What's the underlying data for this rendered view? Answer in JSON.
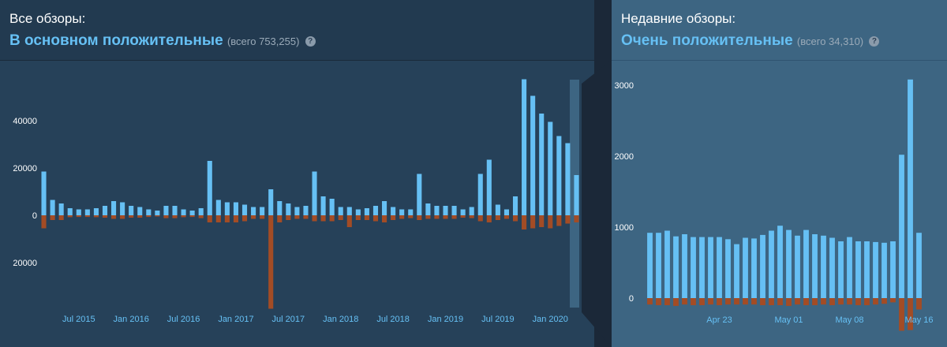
{
  "all_reviews": {
    "title": "Все обзоры:",
    "summary": "В основном положительные",
    "total": "(всего 753,255)",
    "help": "?"
  },
  "recent_reviews": {
    "title": "Недавние обзоры:",
    "summary": "Очень положительные",
    "total": "(всего 34,310)",
    "help": "?"
  },
  "colors": {
    "positive": "#66c0f4",
    "negative": "#a34c25",
    "selection": "#3d6582"
  },
  "chart_data": [
    {
      "type": "bar",
      "name": "all-reviews-monthly",
      "ylim": [
        -40000,
        60000
      ],
      "yticks": [
        40000,
        20000,
        0,
        -20000
      ],
      "ytick_labels": [
        "40000",
        "20000",
        "0",
        "20000"
      ],
      "xtick_labels": [
        "Jul 2015",
        "Jan 2016",
        "Jul 2016",
        "Jan 2017",
        "Jul 2017",
        "Jan 2018",
        "Jul 2018",
        "Jan 2019",
        "Jul 2019",
        "Jan 2020"
      ],
      "xtick_indices": [
        4,
        10,
        16,
        22,
        28,
        34,
        40,
        46,
        52,
        58
      ],
      "positive": [
        18500,
        6500,
        5000,
        3000,
        2500,
        2500,
        3000,
        4000,
        6000,
        5500,
        4000,
        3500,
        2500,
        2000,
        4000,
        4000,
        2500,
        2000,
        3000,
        23000,
        6500,
        5500,
        5500,
        4500,
        3500,
        3500,
        11000,
        6000,
        5000,
        3500,
        4000,
        18500,
        8000,
        7000,
        3500,
        3500,
        2500,
        3000,
        4000,
        6000,
        3500,
        2500,
        2500,
        17500,
        5000,
        4000,
        4000,
        4000,
        2500,
        3500,
        17500,
        23500,
        4500,
        2500,
        8000,
        57500,
        50500,
        43000,
        39500,
        33500,
        30500,
        17000
      ],
      "negative": [
        -5500,
        -2000,
        -2000,
        -800,
        -700,
        -700,
        -800,
        -1000,
        -1500,
        -1500,
        -1000,
        -1000,
        -700,
        -500,
        -1200,
        -1200,
        -800,
        -700,
        -1200,
        -3000,
        -3000,
        -3000,
        -3000,
        -2500,
        -1500,
        -1500,
        -39500,
        -3000,
        -2000,
        -1500,
        -1500,
        -2500,
        -2500,
        -2500,
        -2000,
        -5000,
        -2000,
        -2000,
        -2500,
        -3000,
        -2000,
        -1500,
        -1200,
        -2000,
        -1500,
        -1500,
        -1500,
        -1500,
        -1000,
        -1200,
        -2500,
        -3000,
        -2000,
        -1500,
        -2500,
        -6000,
        -5500,
        -5000,
        -5500,
        -4500,
        -3500,
        -3000
      ]
    },
    {
      "type": "bar",
      "name": "recent-reviews-daily",
      "ylim": [
        -300,
        3200
      ],
      "yticks": [
        3000,
        2000,
        1000,
        0
      ],
      "ytick_labels": [
        "3000",
        "2000",
        "1000",
        "0"
      ],
      "xtick_labels": [
        "Apr 23",
        "May 01",
        "May 08",
        "May 16"
      ],
      "xtick_indices": [
        8,
        16,
        23,
        31
      ],
      "positive": [
        920,
        920,
        950,
        870,
        900,
        860,
        860,
        860,
        860,
        830,
        760,
        850,
        840,
        890,
        950,
        1020,
        960,
        880,
        960,
        900,
        880,
        850,
        800,
        860,
        800,
        800,
        790,
        780,
        800,
        2020,
        3080,
        920
      ],
      "negative": [
        -90,
        -100,
        -100,
        -110,
        -90,
        -100,
        -100,
        -90,
        -100,
        -90,
        -90,
        -90,
        -90,
        -100,
        -100,
        -100,
        -110,
        -90,
        -100,
        -100,
        -90,
        -100,
        -90,
        -90,
        -100,
        -100,
        -90,
        -80,
        -60,
        -460,
        -450,
        -160
      ]
    }
  ]
}
